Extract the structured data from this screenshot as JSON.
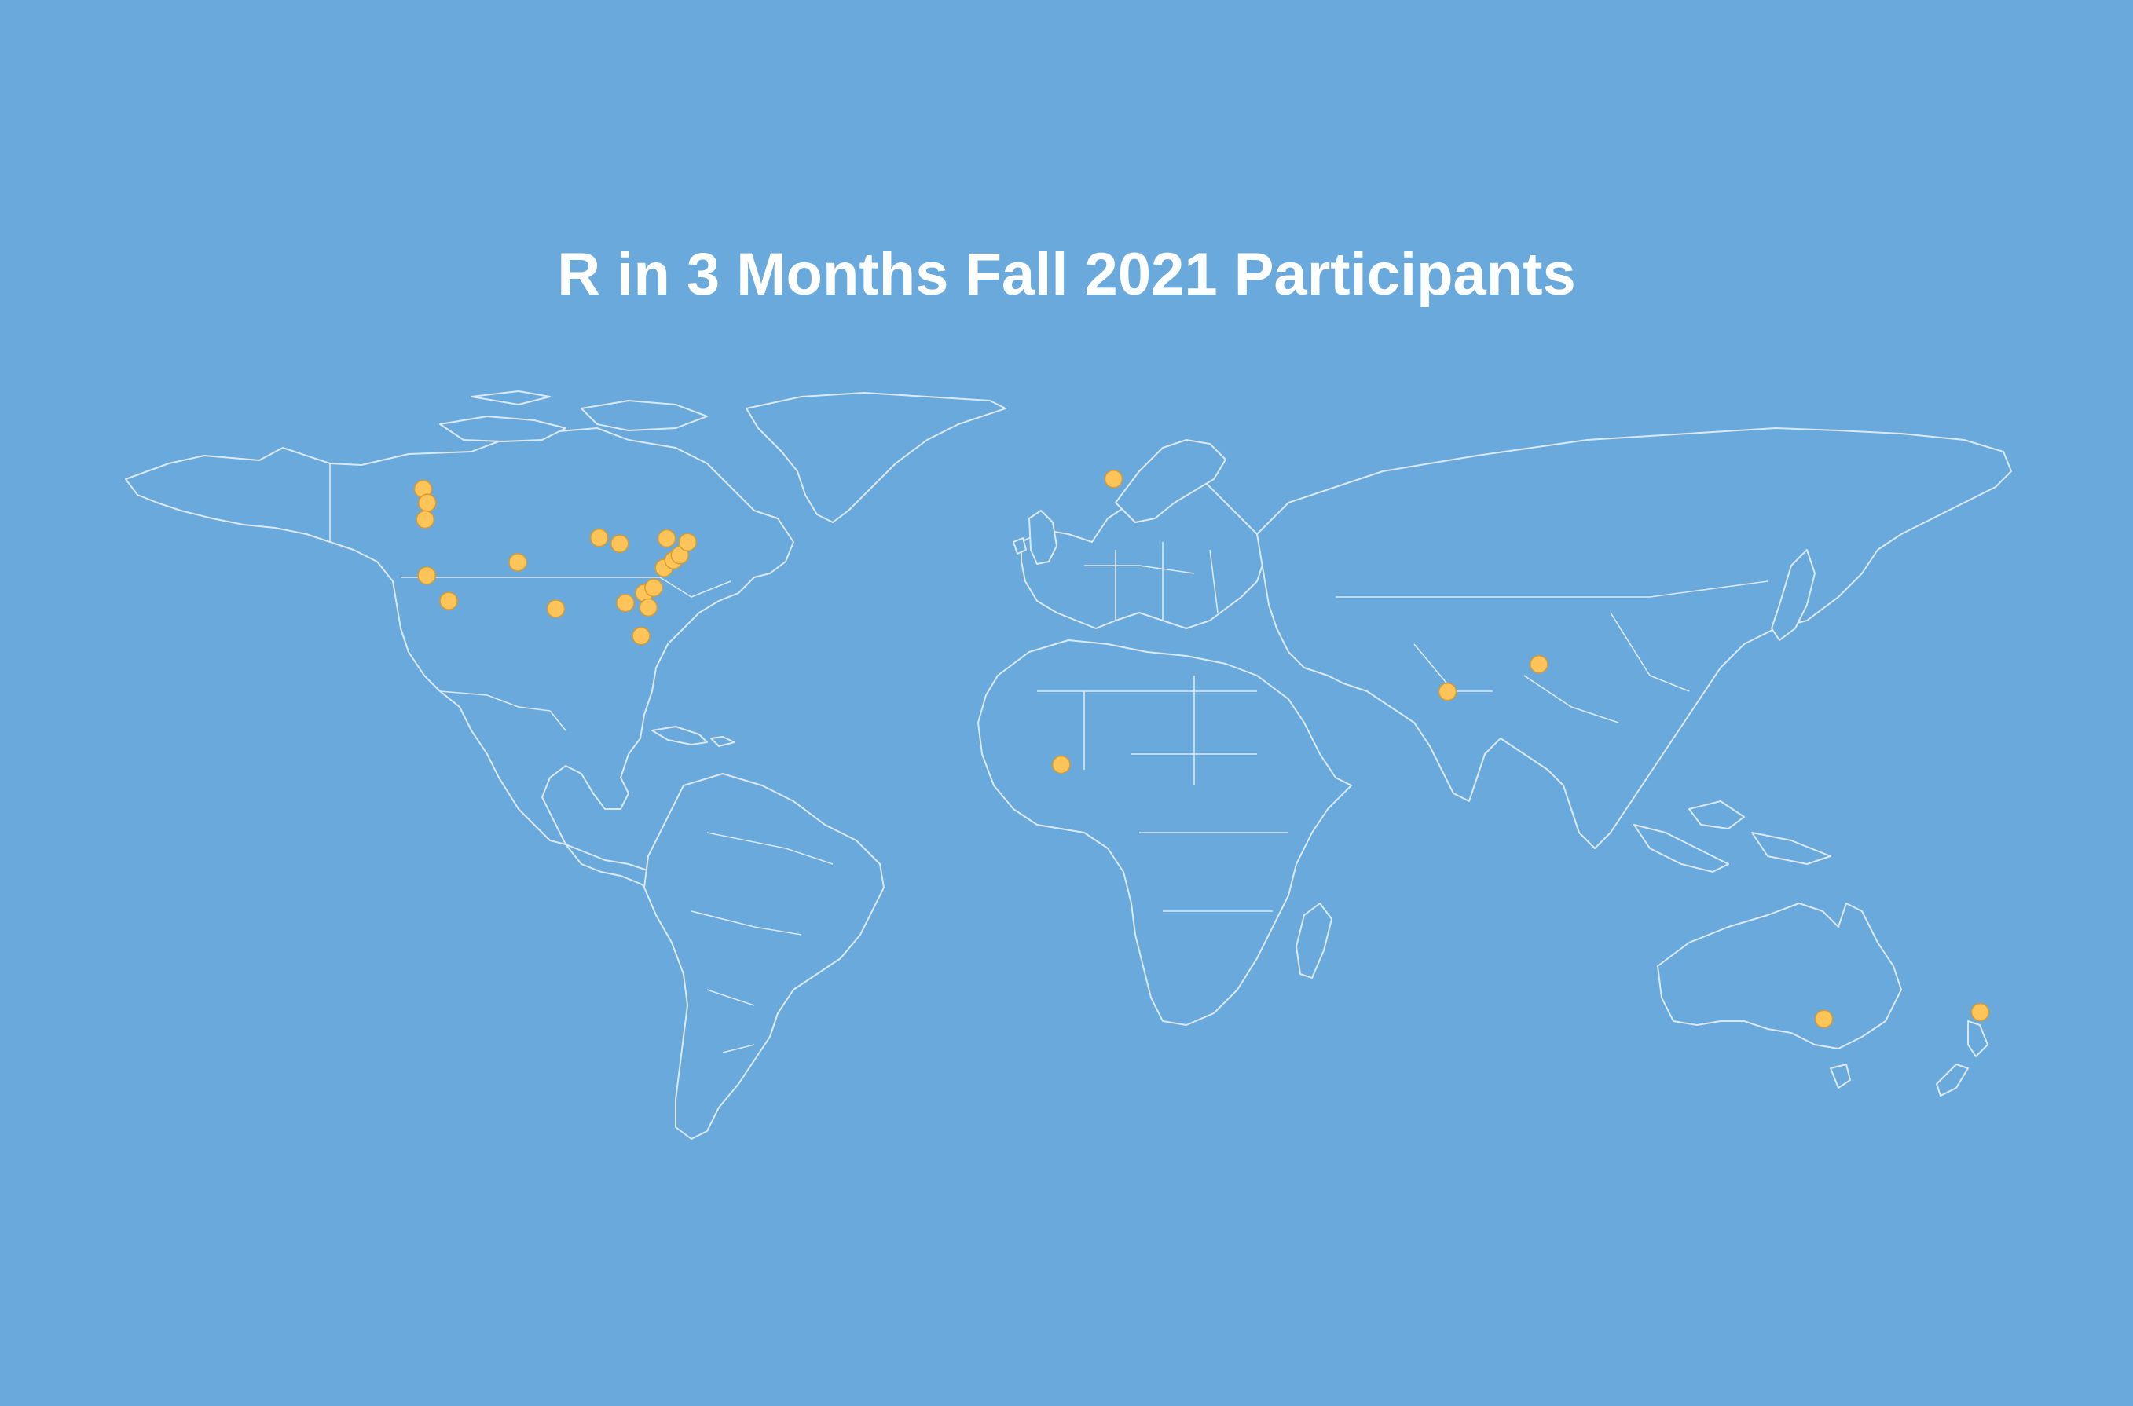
{
  "title": "R in 3 Months Fall 2021 Participants",
  "colors": {
    "background": "#6aa9dc",
    "land_outline": "#dbe9f6",
    "marker": "#fdc45a",
    "title": "#ffffff"
  },
  "markers": [
    {
      "region": "Vancouver area",
      "lon": -123.1,
      "lat": 49.3
    },
    {
      "region": "Seattle area",
      "lon": -122.3,
      "lat": 47.6
    },
    {
      "region": "Pacific Northwest",
      "lon": -122.7,
      "lat": 45.5
    },
    {
      "region": "San Francisco Bay",
      "lon": -122.4,
      "lat": 37.8
    },
    {
      "region": "Southern California",
      "lon": -118.2,
      "lat": 34.0
    },
    {
      "region": "Colorado",
      "lon": -105.0,
      "lat": 39.7
    },
    {
      "region": "Texas",
      "lon": -97.7,
      "lat": 32.8
    },
    {
      "region": "Wisconsin",
      "lon": -89.4,
      "lat": 43.1
    },
    {
      "region": "Michigan",
      "lon": -85.5,
      "lat": 42.3
    },
    {
      "region": "Georgia",
      "lon": -84.4,
      "lat": 33.7
    },
    {
      "region": "North Carolina",
      "lon": -80.8,
      "lat": 35.2
    },
    {
      "region": "Virginia",
      "lon": -79.0,
      "lat": 36.0
    },
    {
      "region": "South Carolina",
      "lon": -80.0,
      "lat": 33.0
    },
    {
      "region": "Washington DC",
      "lon": -77.0,
      "lat": 38.9
    },
    {
      "region": "Philadelphia",
      "lon": -75.2,
      "lat": 40.0
    },
    {
      "region": "New York",
      "lon": -74.0,
      "lat": 40.7
    },
    {
      "region": "New England",
      "lon": -72.5,
      "lat": 42.5
    },
    {
      "region": "Upstate New York",
      "lon": -76.5,
      "lat": 43.0
    },
    {
      "region": "Florida",
      "lon": -81.4,
      "lat": 28.5
    },
    {
      "region": "Germany",
      "lon": 9.0,
      "lat": 50.5
    },
    {
      "region": "Ghana",
      "lon": -1.0,
      "lat": 6.0
    },
    {
      "region": "India (Mumbai)",
      "lon": 72.9,
      "lat": 19.1
    },
    {
      "region": "Bangladesh",
      "lon": 90.4,
      "lat": 23.8
    },
    {
      "region": "Australia (Melbourne)",
      "lon": 144.9,
      "lat": -37.8
    },
    {
      "region": "New Zealand",
      "lon": 174.8,
      "lat": -36.8
    }
  ]
}
